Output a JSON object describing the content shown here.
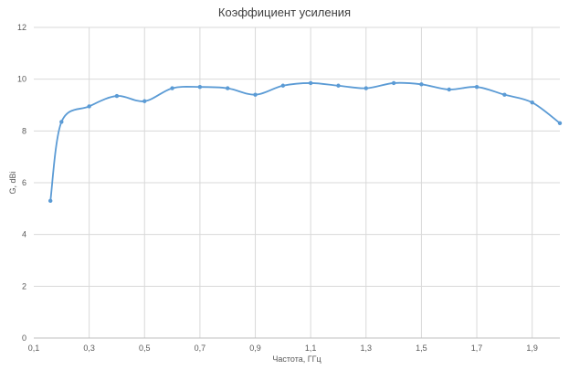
{
  "chart_data": {
    "type": "line",
    "title": "Коэффициент усиления",
    "xlabel": "Частота, ГГц",
    "ylabel": "G, dBi",
    "xlim": [
      0.1,
      2.0
    ],
    "ylim": [
      0,
      12
    ],
    "x_ticks": [
      "0,1",
      "0,3",
      "0,5",
      "0,7",
      "0,9",
      "1,1",
      "1,3",
      "1,5",
      "1,7",
      "1,9"
    ],
    "x_tick_values": [
      0.1,
      0.3,
      0.5,
      0.7,
      0.9,
      1.1,
      1.3,
      1.5,
      1.7,
      1.9
    ],
    "y_ticks": [
      "0",
      "2",
      "4",
      "6",
      "8",
      "10",
      "12"
    ],
    "y_tick_values": [
      0,
      2,
      4,
      6,
      8,
      10,
      12
    ],
    "grid": true,
    "series": [
      {
        "color": "#5b9bd5",
        "x": [
          0.16,
          0.2,
          0.3,
          0.4,
          0.5,
          0.6,
          0.7,
          0.8,
          0.9,
          1.0,
          1.1,
          1.2,
          1.3,
          1.4,
          1.5,
          1.6,
          1.7,
          1.8,
          1.9,
          2.0
        ],
        "y": [
          5.3,
          8.35,
          8.95,
          9.35,
          9.15,
          9.65,
          9.7,
          9.65,
          9.4,
          9.75,
          9.85,
          9.75,
          9.65,
          9.85,
          9.8,
          9.6,
          9.7,
          9.4,
          9.1,
          8.3
        ]
      }
    ]
  }
}
